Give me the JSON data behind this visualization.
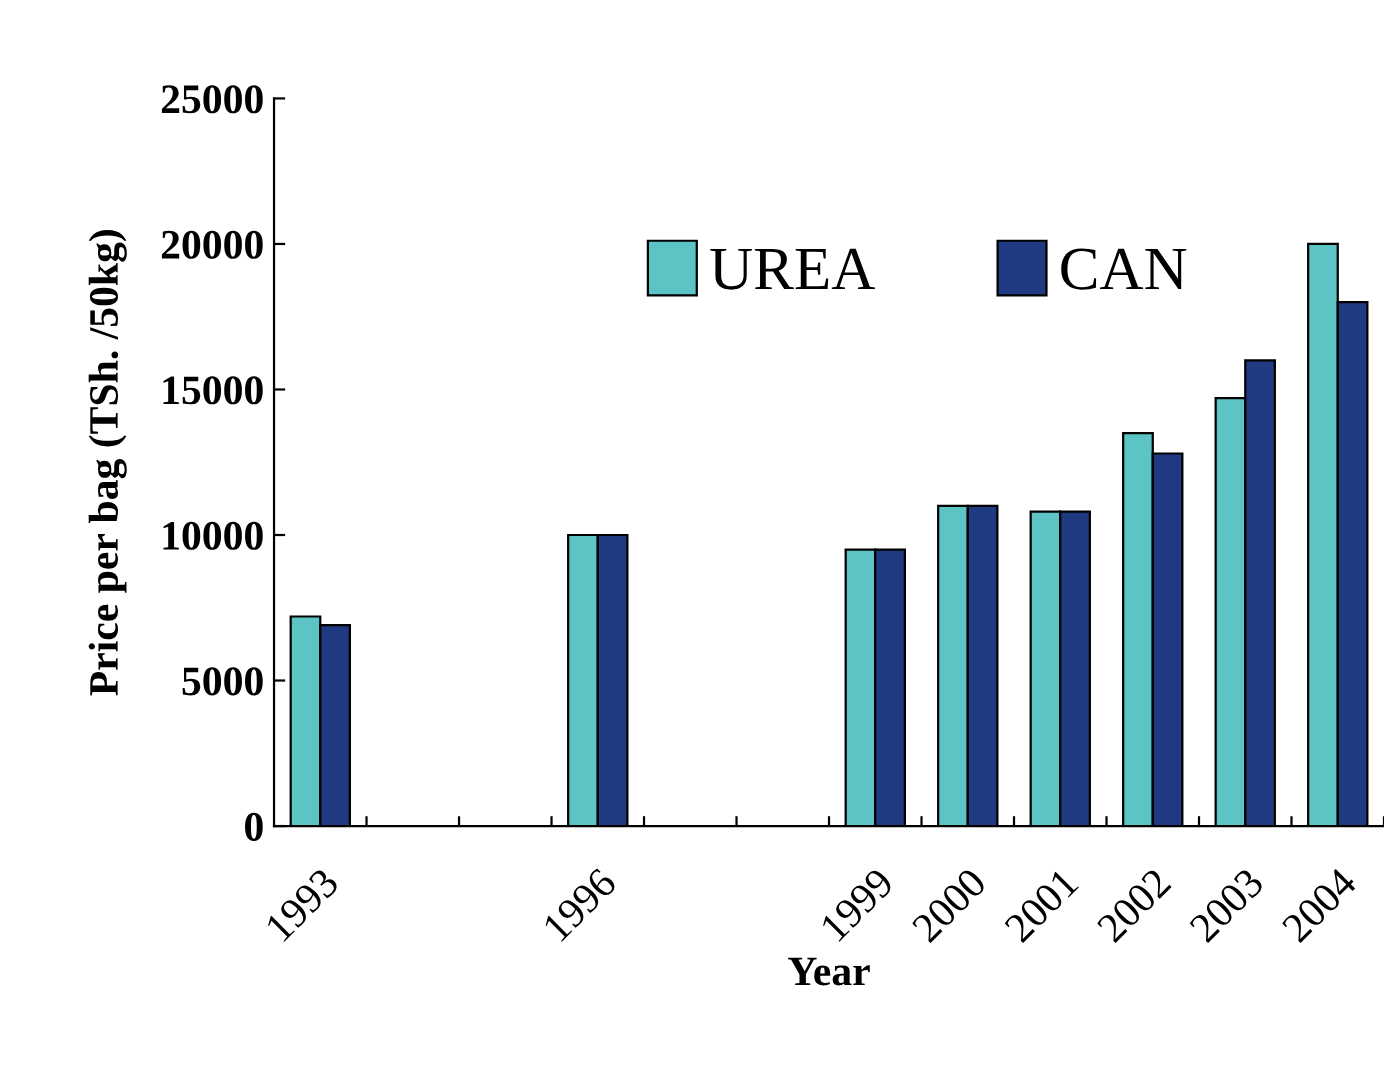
{
  "chart_data": {
    "type": "bar",
    "xlabel": "Year",
    "ylabel": "Price per bag (TSh. /50kg)",
    "categories": [
      "1993",
      null,
      null,
      "1996",
      null,
      null,
      "1999",
      "2000",
      "2001",
      "2002",
      "2003",
      "2004"
    ],
    "series": [
      {
        "name": "UREA",
        "color": "#5cc4c4",
        "values": [
          7200,
          null,
          null,
          10000,
          null,
          null,
          9500,
          11000,
          10800,
          13500,
          14700,
          20000
        ]
      },
      {
        "name": "CAN",
        "color": "#1f3a80",
        "values": [
          6900,
          null,
          null,
          10000,
          null,
          null,
          9500,
          11000,
          10800,
          12800,
          16000,
          18000
        ]
      }
    ],
    "ylim": [
      0,
      25000
    ],
    "yticks": [
      0,
      5000,
      10000,
      15000,
      20000,
      25000
    ],
    "grid": false,
    "legend": "top"
  }
}
